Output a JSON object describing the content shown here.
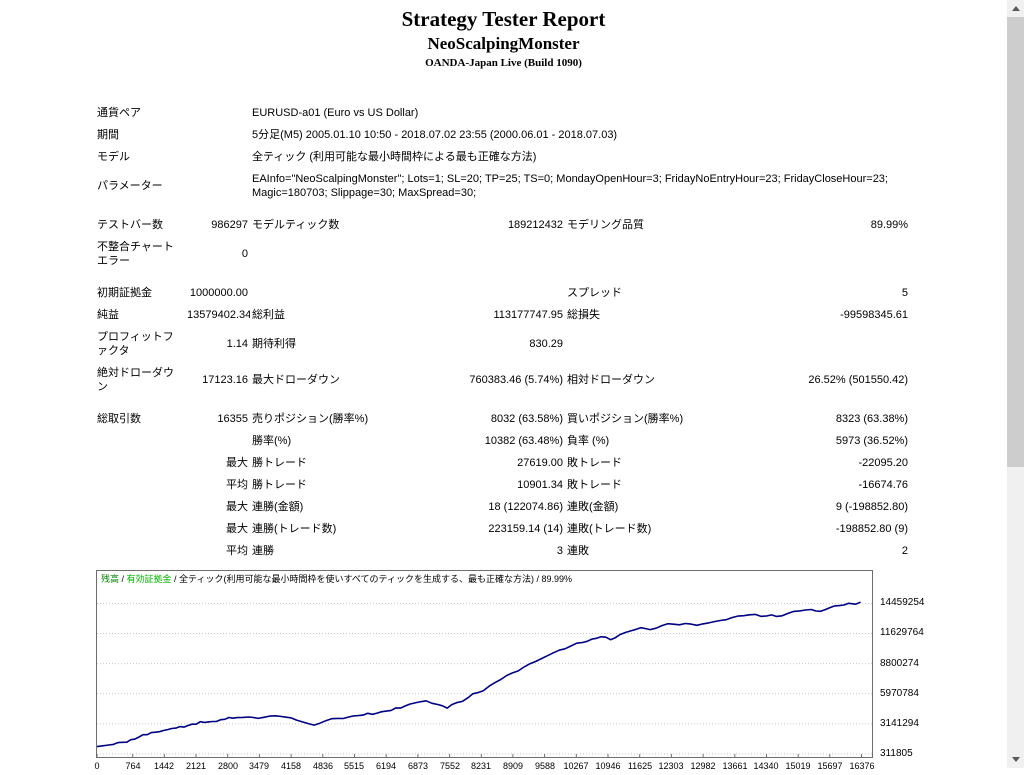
{
  "header": {
    "title": "Strategy Tester Report",
    "ea_name": "NeoScalpingMonster",
    "server_build": "OANDA-Japan Live (Build 1090)"
  },
  "report_table": {
    "rows": [
      {
        "cells": [
          {
            "t": "通貨ペア",
            "c": 2
          },
          {
            "t": "EURUSD-a01 (Euro vs US Dollar)",
            "c": 4
          }
        ]
      },
      {
        "cells": [
          {
            "t": "期間",
            "c": 2
          },
          {
            "t": "5分足(M5) 2005.01.10 10:50 - 2018.07.02 23:55 (2000.06.01 - 2018.07.03)",
            "c": 4
          }
        ]
      },
      {
        "cells": [
          {
            "t": "モデル",
            "c": 2
          },
          {
            "t": "全ティック (利用可能な最小時間枠による最も正確な方法)",
            "c": 4
          }
        ]
      },
      {
        "cells": [
          {
            "t": "パラメーター",
            "c": 2
          },
          {
            "t": "EAInfo=\"NeoScalpingMonster\"; Lots=1; SL=20; TP=25; TS=0; MondayOpenHour=3; FridayNoEntryHour=23; FridayCloseHour=23; Magic=180703; Slippage=30; MaxSpread=30;",
            "c": 4
          }
        ]
      },
      {
        "spacer": true
      },
      {
        "cells": [
          {
            "t": "テストバー数"
          },
          {
            "t": "986297",
            "a": "right"
          },
          {
            "t": "モデルティック数"
          },
          {
            "t": "189212432",
            "a": "right"
          },
          {
            "t": "モデリング品質"
          },
          {
            "t": "89.99%",
            "a": "right"
          }
        ]
      },
      {
        "cells": [
          {
            "t": "不整合チャートエラー"
          },
          {
            "t": "0",
            "a": "right"
          },
          {
            "t": "",
            "c": 4
          }
        ]
      },
      {
        "spacer": true
      },
      {
        "cells": [
          {
            "t": "初期証拠金"
          },
          {
            "t": "1000000.00",
            "a": "right"
          },
          {
            "t": ""
          },
          {
            "t": "",
            "a": "right"
          },
          {
            "t": "スプレッド"
          },
          {
            "t": "5",
            "a": "right"
          }
        ]
      },
      {
        "cells": [
          {
            "t": "純益"
          },
          {
            "t": "13579402.34",
            "a": "right"
          },
          {
            "t": "総利益"
          },
          {
            "t": "113177747.95",
            "a": "right"
          },
          {
            "t": "総損失"
          },
          {
            "t": "-99598345.61",
            "a": "right"
          }
        ]
      },
      {
        "cells": [
          {
            "t": "プロフィットファクタ"
          },
          {
            "t": "1.14",
            "a": "right"
          },
          {
            "t": "期待利得"
          },
          {
            "t": "830.29",
            "a": "right"
          },
          {
            "t": ""
          },
          {
            "t": "",
            "a": "right"
          }
        ]
      },
      {
        "cells": [
          {
            "t": "絶対ドローダウン"
          },
          {
            "t": "17123.16",
            "a": "right"
          },
          {
            "t": "最大ドローダウン"
          },
          {
            "t": "760383.46 (5.74%)",
            "a": "right"
          },
          {
            "t": "相対ドローダウン"
          },
          {
            "t": "26.52% (501550.42)",
            "a": "right"
          }
        ]
      },
      {
        "spacer": true
      },
      {
        "cells": [
          {
            "t": "総取引数"
          },
          {
            "t": "16355",
            "a": "right"
          },
          {
            "t": "売りポジション(勝率%)"
          },
          {
            "t": "8032 (63.58%)",
            "a": "right"
          },
          {
            "t": "買いポジション(勝率%)"
          },
          {
            "t": "8323 (63.38%)",
            "a": "right"
          }
        ]
      },
      {
        "cells": [
          {
            "t": ""
          },
          {
            "t": "",
            "a": "right"
          },
          {
            "t": "勝率(%)"
          },
          {
            "t": "10382 (63.48%)",
            "a": "right"
          },
          {
            "t": "負率 (%)"
          },
          {
            "t": "5973 (36.52%)",
            "a": "right"
          }
        ]
      },
      {
        "cells": [
          {
            "t": ""
          },
          {
            "t": "最大",
            "a": "right"
          },
          {
            "t": "勝トレード"
          },
          {
            "t": "27619.00",
            "a": "right"
          },
          {
            "t": "敗トレード"
          },
          {
            "t": "-22095.20",
            "a": "right"
          }
        ]
      },
      {
        "cells": [
          {
            "t": ""
          },
          {
            "t": "平均",
            "a": "right"
          },
          {
            "t": "勝トレード"
          },
          {
            "t": "10901.34",
            "a": "right"
          },
          {
            "t": "敗トレード"
          },
          {
            "t": "-16674.76",
            "a": "right"
          }
        ]
      },
      {
        "cells": [
          {
            "t": ""
          },
          {
            "t": "最大",
            "a": "right"
          },
          {
            "t": "連勝(金額)"
          },
          {
            "t": "18 (122074.86)",
            "a": "right"
          },
          {
            "t": "連敗(金額)"
          },
          {
            "t": "9 (-198852.80)",
            "a": "right"
          }
        ]
      },
      {
        "cells": [
          {
            "t": ""
          },
          {
            "t": "最大",
            "a": "right"
          },
          {
            "t": "連勝(トレード数)"
          },
          {
            "t": "223159.14 (14)",
            "a": "right"
          },
          {
            "t": "連敗(トレード数)"
          },
          {
            "t": "-198852.80 (9)",
            "a": "right"
          }
        ]
      },
      {
        "cells": [
          {
            "t": ""
          },
          {
            "t": "平均",
            "a": "right"
          },
          {
            "t": "連勝"
          },
          {
            "t": "3",
            "a": "right"
          },
          {
            "t": "連敗"
          },
          {
            "t": "2",
            "a": "right"
          }
        ]
      }
    ]
  },
  "chart_data": {
    "type": "line",
    "title": "",
    "legend": {
      "balance_label": "残高",
      "sep": " / ",
      "equity_label": "有効証拠金",
      "model_text": " / 全ティック(利用可能な最小時間枠を使いすべてのティックを生成する、最も正確な方法) / 89.99%"
    },
    "colors": {
      "balance_line": "#000080",
      "legend_balance": "#008000",
      "legend_equity": "#00b400"
    },
    "grid": "horizontal-dotted",
    "legend_position": "top-left-inside",
    "x_ticks": [
      0,
      764,
      1442,
      2121,
      2800,
      3479,
      4158,
      4836,
      5515,
      6194,
      6873,
      7552,
      8231,
      8909,
      9588,
      10267,
      10946,
      11625,
      12303,
      12982,
      13661,
      14340,
      15019,
      15697,
      16376
    ],
    "y_ticks": [
      311805,
      3141294,
      5970784,
      8800274,
      11629764,
      14459254
    ],
    "xlim": [
      0,
      16600
    ],
    "ylim": [
      20000,
      17500000
    ],
    "series": [
      {
        "name": "残高",
        "points": [
          [
            0,
            1000000
          ],
          [
            250,
            1150000
          ],
          [
            550,
            1400000
          ],
          [
            900,
            1900000
          ],
          [
            1250,
            2350000
          ],
          [
            1600,
            2700000
          ],
          [
            1950,
            2980000
          ],
          [
            2300,
            3270000
          ],
          [
            2650,
            3530000
          ],
          [
            3000,
            3720000
          ],
          [
            3250,
            3780000
          ],
          [
            3450,
            3650000
          ],
          [
            3700,
            3860000
          ],
          [
            3950,
            3830000
          ],
          [
            4150,
            3700000
          ],
          [
            4400,
            3320000
          ],
          [
            4650,
            3020000
          ],
          [
            4900,
            3430000
          ],
          [
            5150,
            3650000
          ],
          [
            5400,
            3790000
          ],
          [
            5700,
            3960000
          ],
          [
            6000,
            4150000
          ],
          [
            6300,
            4400000
          ],
          [
            6600,
            4810000
          ],
          [
            6900,
            5190000
          ],
          [
            7050,
            5300000
          ],
          [
            7300,
            4950000
          ],
          [
            7500,
            4620000
          ],
          [
            7700,
            5120000
          ],
          [
            7950,
            5600000
          ],
          [
            8150,
            6060000
          ],
          [
            8400,
            6680000
          ],
          [
            8650,
            7300000
          ],
          [
            8900,
            7920000
          ],
          [
            9150,
            8490000
          ],
          [
            9400,
            9000000
          ],
          [
            9650,
            9540000
          ],
          [
            9900,
            10060000
          ],
          [
            10150,
            10450000
          ],
          [
            10400,
            10780000
          ],
          [
            10600,
            11100000
          ],
          [
            10800,
            11320000
          ],
          [
            11000,
            11040000
          ],
          [
            11200,
            11520000
          ],
          [
            11450,
            11900000
          ],
          [
            11650,
            12170000
          ],
          [
            11850,
            11990000
          ],
          [
            12100,
            12370000
          ],
          [
            12350,
            12500000
          ],
          [
            12600,
            12570000
          ],
          [
            12850,
            12400000
          ],
          [
            13100,
            12620000
          ],
          [
            13350,
            12850000
          ],
          [
            13600,
            13120000
          ],
          [
            13850,
            13300000
          ],
          [
            14100,
            13420000
          ],
          [
            14350,
            13280000
          ],
          [
            14550,
            13230000
          ],
          [
            14800,
            13520000
          ],
          [
            15050,
            13750000
          ],
          [
            15300,
            13880000
          ],
          [
            15500,
            13710000
          ],
          [
            15700,
            14060000
          ],
          [
            15900,
            14250000
          ],
          [
            16100,
            14460000
          ],
          [
            16250,
            14380000
          ],
          [
            16355,
            14579402
          ]
        ]
      }
    ]
  }
}
